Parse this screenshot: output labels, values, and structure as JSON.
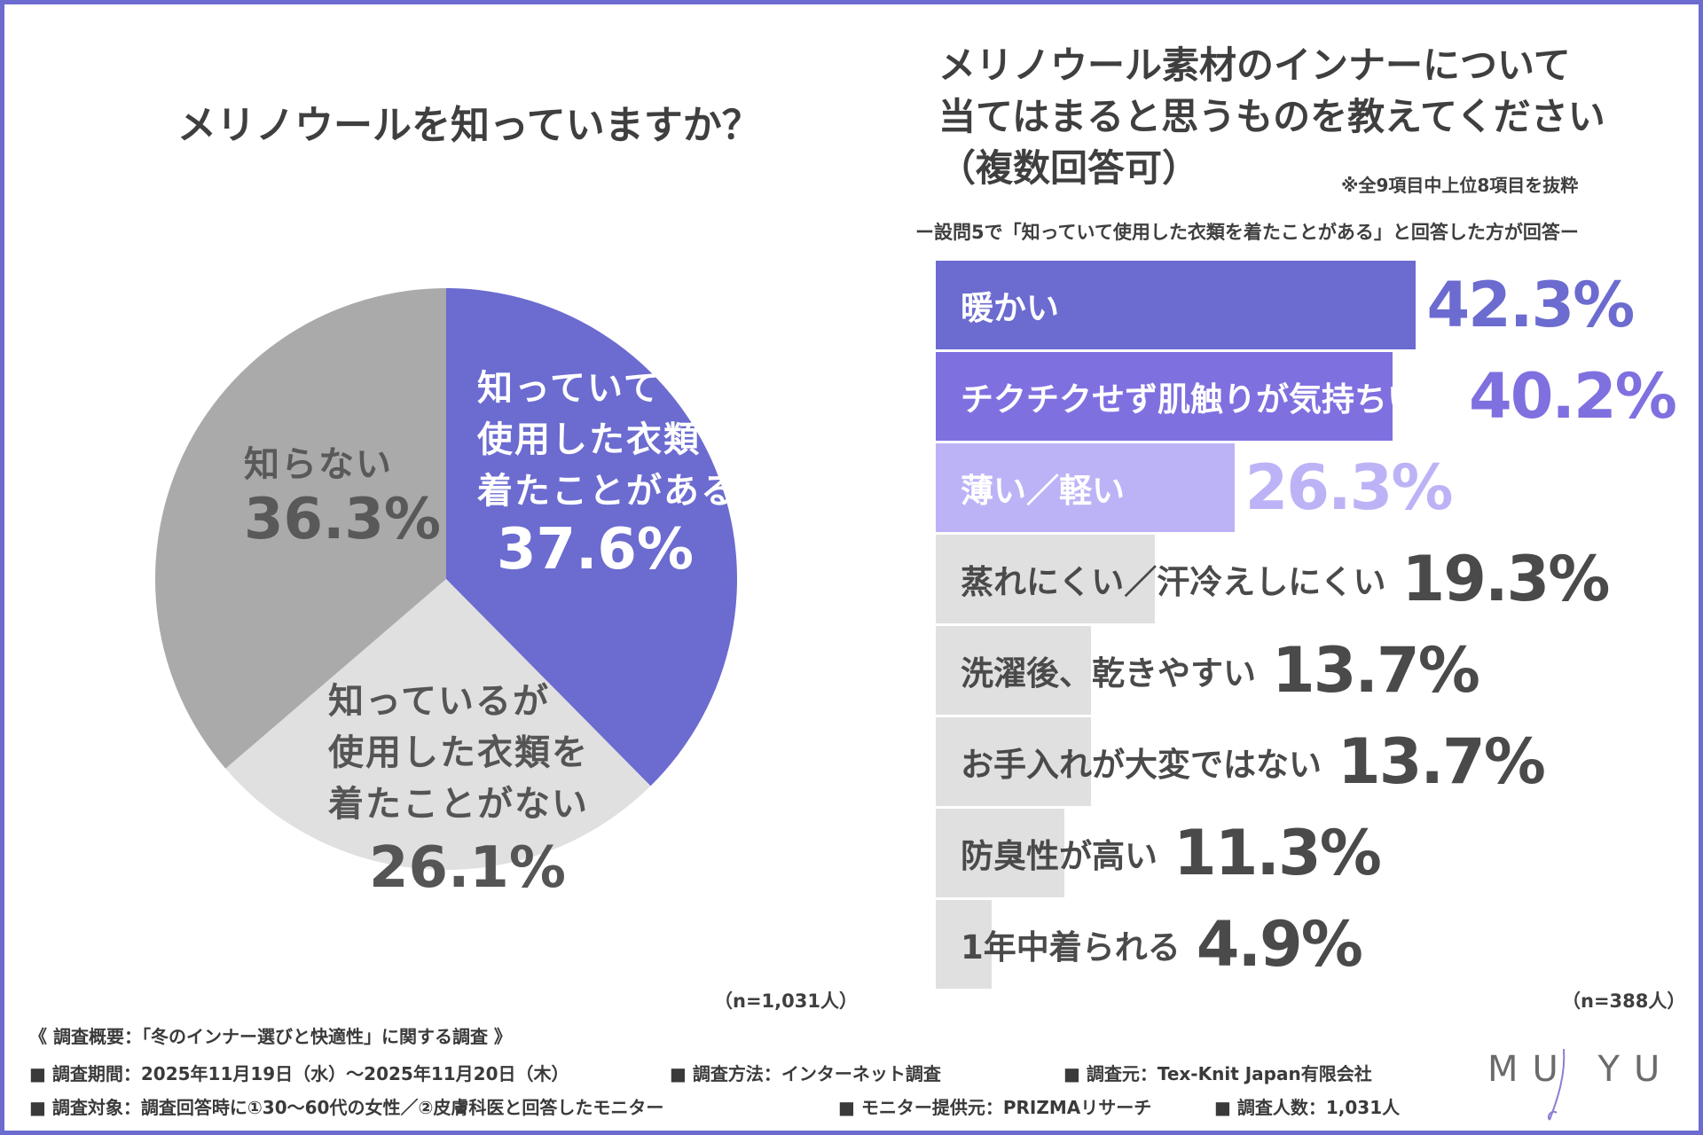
{
  "chart_data": [
    {
      "type": "pie",
      "title": "メリノウールを知っていますか？",
      "n_label": "（n=1,031人）",
      "slices": [
        {
          "label_lines": [
            "知っていて",
            "使用した衣類を",
            "着たことがある"
          ],
          "value": 37.6,
          "value_label": "37.6%",
          "color": "#6b6bd0"
        },
        {
          "label_lines": [
            "知っているが",
            "使用した衣類を",
            "着たことがない"
          ],
          "value": 26.1,
          "value_label": "26.1%",
          "color": "#e0e0e0"
        },
        {
          "label_lines": [
            "知らない"
          ],
          "value": 36.3,
          "value_label": "36.3%",
          "color": "#aaaaaa"
        }
      ]
    },
    {
      "type": "bar",
      "orientation": "horizontal",
      "title_lines": [
        "メリノウール素材のインナーについて",
        "当てはまると思うものを教えてください",
        "（複数回答可）"
      ],
      "note": "※全9項目中上位8項目を抜粋",
      "subtitle": "ー設問5で「知っていて使用した衣類を着たことがある」と回答した方が回答ー",
      "n_label": "（n=388人）",
      "xlim": [
        0,
        100
      ],
      "categories": [
        "暖かい",
        "チクチクせず肌触りが気持ちいい",
        "薄い／軽い",
        "蒸れにくい／汗冷えしにくい",
        "洗濯後、乾きやすい",
        "お手入れが大変ではない",
        "防臭性が高い",
        "1年中着られる"
      ],
      "values": [
        42.3,
        40.2,
        26.3,
        19.3,
        13.7,
        13.7,
        11.3,
        4.9
      ],
      "value_labels": [
        "42.3%",
        "40.2%",
        "26.3%",
        "19.3%",
        "13.7%",
        "13.7%",
        "11.3%",
        "4.9%"
      ]
    }
  ],
  "colors": {
    "accent": "#6b6bd0",
    "accent_second": "#7f70e0",
    "accent_light": "#bcb3f7",
    "bar_gray": "#e0e0e0",
    "pie_dark_gray": "#aaaaaa",
    "value_gray": "#4a4a4a"
  },
  "footer": {
    "heading": "《 調査概要：「冬のインナー選びと快適性」に関する調査 》",
    "period": "■ 調査期間：2025年11月19日（水）～2025年11月20日（木）",
    "method": "■ 調査方法：インターネット調査",
    "source": "■ 調査元：Tex-Knit Japan有限会社",
    "target": "■ 調査対象：調査回答時に①30～60代の女性／②皮膚科医と回答したモニター",
    "provider": "■ モニター提供元：PRIZMAリサーチ",
    "count": "■ 調査人数：1,031人"
  },
  "logo": {
    "text": "MU YU"
  }
}
